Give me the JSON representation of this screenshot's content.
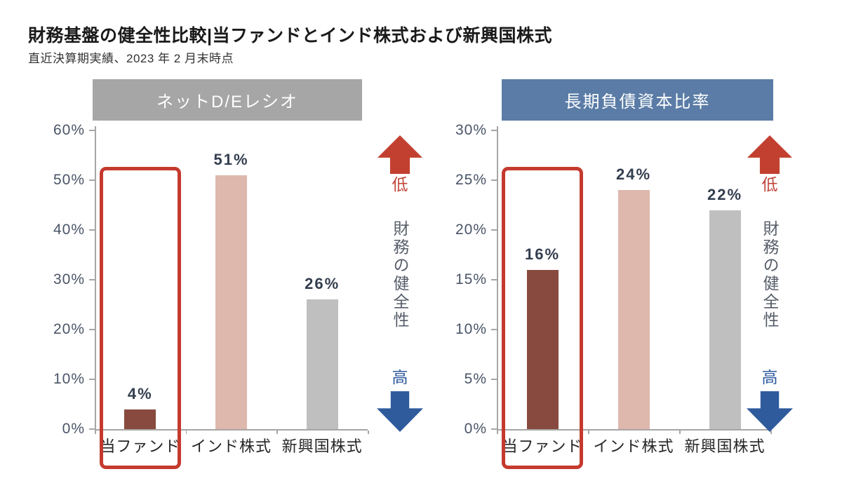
{
  "page": {
    "title": "財務基盤の健全性比較|当ファンドとインド株式および新興国株式",
    "subtitle": "直近決算期実績、2023 年 2 月末時点"
  },
  "side_annotation": {
    "low": "低",
    "high": "高",
    "note": "財務の健全性"
  },
  "colors": {
    "arrow_red": "#c2402f",
    "arrow_blue": "#2f5b9d",
    "low_text": "#c14539",
    "high_text": "#2d5a9f",
    "highlight_red": "#c53a2e",
    "axis_line": "#a6a6a6",
    "tick_text": "#4a5568",
    "value_text": "#333e4f",
    "category_text": "#262626",
    "note_text": "#565d68"
  },
  "chart_data": [
    {
      "type": "bar",
      "title": "ネットD/Eレシオ",
      "header_color": "#a6a6a6",
      "categories": [
        "当ファンド",
        "インド株式",
        "新興国株式"
      ],
      "values": [
        4,
        51,
        26
      ],
      "data_labels": [
        "4%",
        "51%",
        "26%"
      ],
      "bar_colors": [
        "#884a3e",
        "#deb8ad",
        "#c0bfbf"
      ],
      "ylim": [
        0,
        60
      ],
      "ytick_step": 10,
      "ytick_labels": [
        "0%",
        "10%",
        "20%",
        "30%",
        "40%",
        "50%",
        "60%"
      ],
      "grid": false,
      "legend": false,
      "highlight": {
        "category_index": 0,
        "label": "当ファンド",
        "top_value": 52
      }
    },
    {
      "type": "bar",
      "title": "長期負債資本比率",
      "header_color": "#5a7ca6",
      "categories": [
        "当ファンド",
        "インド株式",
        "新興国株式"
      ],
      "values": [
        16,
        24,
        22
      ],
      "data_labels": [
        "16%",
        "24%",
        "22%"
      ],
      "bar_colors": [
        "#884a3e",
        "#deb8ad",
        "#c0bfbf"
      ],
      "ylim": [
        0,
        30
      ],
      "ytick_step": 5,
      "ytick_labels": [
        "0%",
        "5%",
        "10%",
        "15%",
        "20%",
        "25%",
        "30%"
      ],
      "grid": false,
      "legend": false,
      "highlight": {
        "category_index": 0,
        "label": "当ファンド",
        "top_value": 26
      }
    }
  ]
}
